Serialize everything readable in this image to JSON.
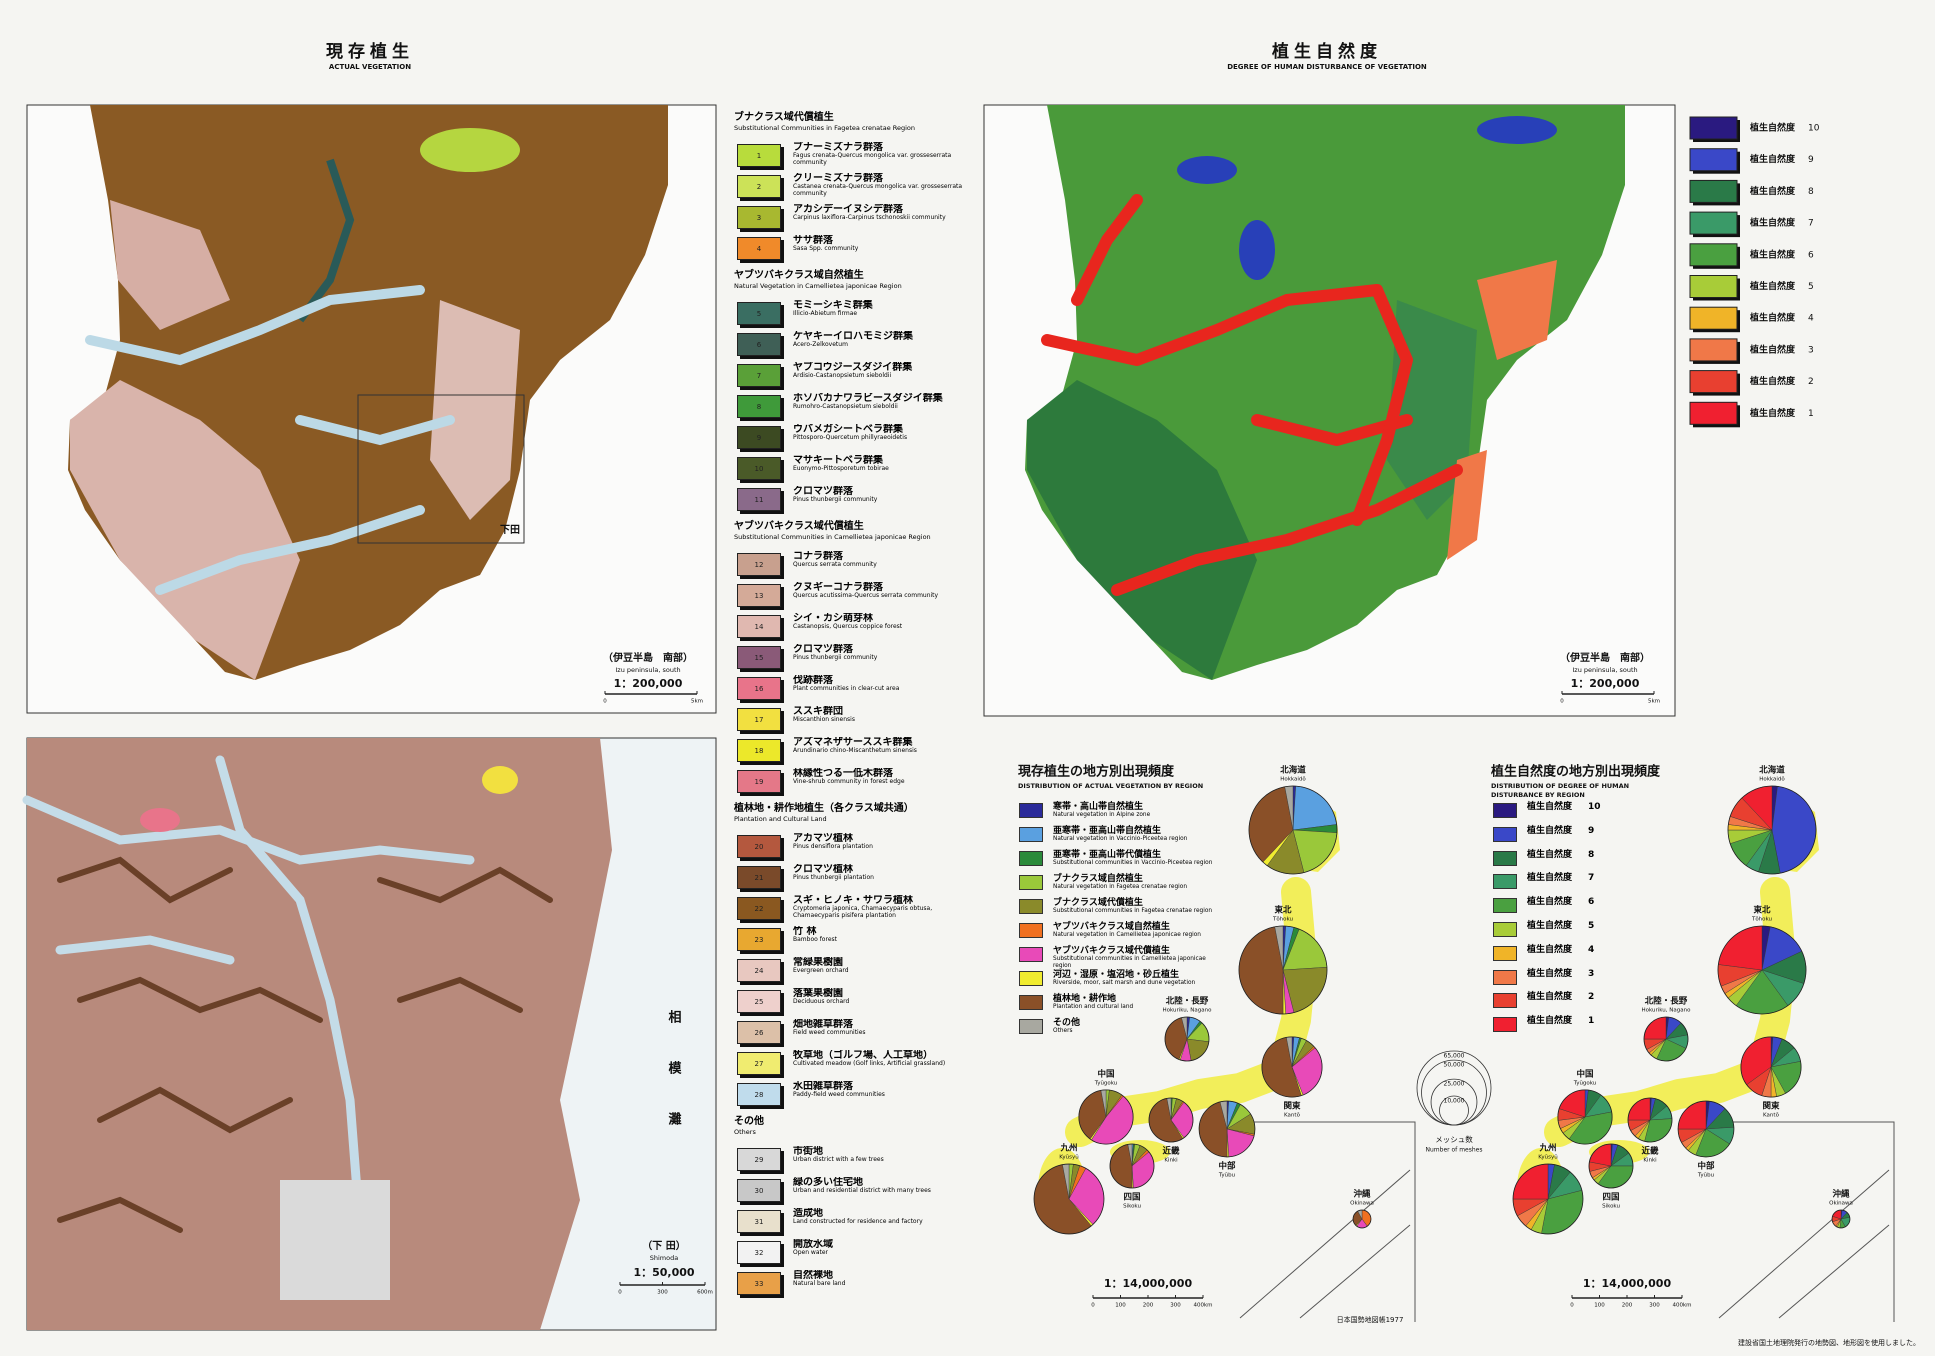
{
  "left_panel": {
    "title": "現存植生",
    "subtitle": "ACTUAL VEGETATION"
  },
  "right_panel": {
    "title": "植生自然度",
    "subtitle": "DEGREE OF HUMAN DISTURBANCE OF VEGETATION"
  },
  "map_izu": {
    "name": "（伊豆半島　南部）",
    "name_en": "Izu peninsula, south",
    "scale": "1：200,000",
    "scale_ticks": [
      "0",
      "5km"
    ],
    "place_label": "下田"
  },
  "map_shimoda": {
    "name": "（下 田）",
    "name_en": "Shimoda",
    "scale": "1：50,000",
    "scale_ticks": [
      "0",
      "300",
      "600m"
    ],
    "sea_label": "相模灘"
  },
  "degree_map": {
    "name": "（伊豆半島　南部）",
    "name_en": "Izu peninsula, south",
    "scale": "1：200,000",
    "scale_ticks": [
      "0",
      "5km"
    ]
  },
  "vegetation_legend": {
    "sections": [
      {
        "title": "ブナクラス域代償植生",
        "title_en": "Substitutional Communities in Fagetea crenatae Region",
        "items": [
          {
            "no": 1,
            "name": "ブナーミズナラ群落",
            "name_en": "Fagus crenata-Quercus mongolica var. grosseserrata community",
            "color": "#b8dc3c"
          },
          {
            "no": 2,
            "name": "クリーミズナラ群落",
            "name_en": "Castanea crenata-Quercus mongolica var. grosseserrata community",
            "color": "#cce258"
          },
          {
            "no": 3,
            "name": "アカシデーイヌシデ群落",
            "name_en": "Carpinus laxiflora-Carpinus tschonoskii community",
            "color": "#a8b830"
          },
          {
            "no": 4,
            "name": "ササ群落",
            "name_en": "Sasa Spp. community",
            "color": "#f08a2a"
          }
        ]
      },
      {
        "title": "ヤブツバキクラス域自然植生",
        "title_en": "Natural Vegetation in Camellietea japonicae Region",
        "items": [
          {
            "no": 5,
            "name": "モミーシキミ群集",
            "name_en": "Illicio-Abietum firmae",
            "color": "#3a6e62"
          },
          {
            "no": 6,
            "name": "ケヤキーイロハモミジ群集",
            "name_en": "Acero-Zelkovetum",
            "color": "#3f5f56"
          },
          {
            "no": 7,
            "name": "ヤブコウジースダジイ群集",
            "name_en": "Ardisio-Castanopsietum sieboldii",
            "color": "#5aa038"
          },
          {
            "no": 8,
            "name": "ホソバカナワラビースダジイ群集",
            "name_en": "Rumohro-Castanopsietum sieboldii",
            "color": "#3f9a3a"
          },
          {
            "no": 9,
            "name": "ウバメガシートベラ群集",
            "name_en": "Pittosporo-Quercetum phillyraeoidetis",
            "color": "#3c4a22"
          },
          {
            "no": 10,
            "name": "マサキートベラ群集",
            "name_en": "Euonymo-Pittosporetum tobirae",
            "color": "#4a5a28"
          },
          {
            "no": 11,
            "name": "クロマツ群落",
            "name_en": "Pinus thunbergii community",
            "color": "#8a6a8a"
          }
        ]
      },
      {
        "title": "ヤブツバキクラス域代償植生",
        "title_en": "Substitutional Communities in Camellietea japonicae Region",
        "items": [
          {
            "no": 12,
            "name": "コナラ群落",
            "name_en": "Quercus serrata community",
            "color": "#c8a08e"
          },
          {
            "no": 13,
            "name": "クヌギーコナラ群落",
            "name_en": "Quercus acutissima-Quercus serrata community",
            "color": "#d4aa98"
          },
          {
            "no": 14,
            "name": "シイ・カシ萌芽林",
            "name_en": "Castanopsis, Quercus coppice forest",
            "color": "#e0b8b0"
          },
          {
            "no": 15,
            "name": "クロマツ群落",
            "name_en": "Pinus thunbergii community",
            "color": "#8a5a78"
          },
          {
            "no": 16,
            "name": "伐跡群落",
            "name_en": "Plant communities in clear-cut area",
            "color": "#e8748a"
          },
          {
            "no": 17,
            "name": "ススキ群団",
            "name_en": "Miscanthion sinensis",
            "color": "#f2e040"
          },
          {
            "no": 18,
            "name": "アズマネザサーススキ群集",
            "name_en": "Arundinario chino-Miscanthetum sinensis",
            "color": "#ece82a"
          },
          {
            "no": 19,
            "name": "林縁性つる一低木群落",
            "name_en": "Vine-shrub community in forest edge",
            "color": "#e47888"
          }
        ]
      },
      {
        "title": "植林地・耕作地植生（各クラス域共通）",
        "title_en": "Plantation and Cultural Land",
        "items": [
          {
            "no": 20,
            "name": "アカマツ植林",
            "name_en": "Pinus densiflora plantation",
            "color": "#b4583e"
          },
          {
            "no": 21,
            "name": "クロマツ植林",
            "name_en": "Pinus thunbergii plantation",
            "color": "#7a4a2a"
          },
          {
            "no": 22,
            "name": "スギ・ヒノキ・サワラ植林",
            "name_en": "Cryptomeria japonica, Chamaecyparis obtusa, Chamaecyparis pisifera plantation",
            "color": "#8a5820"
          },
          {
            "no": 23,
            "name": "竹 林",
            "name_en": "Bamboo forest",
            "color": "#e8a830"
          },
          {
            "no": 24,
            "name": "常緑果樹園",
            "name_en": "Evergreen orchard",
            "color": "#e8c8c0"
          },
          {
            "no": 25,
            "name": "落葉果樹園",
            "name_en": "Deciduous orchard",
            "color": "#eed0cc"
          },
          {
            "no": 26,
            "name": "畑地雑草群落",
            "name_en": "Field weed communities",
            "color": "#dcc0a8"
          },
          {
            "no": 27,
            "name": "牧草地（ゴルフ場、人工草地）",
            "name_en": "Cultivated meadow (Golf links, Artificial grassland)",
            "color": "#f0ec70"
          },
          {
            "no": 28,
            "name": "水田雑草群落",
            "name_en": "Paddy-field weed communities",
            "color": "#c0dcec"
          }
        ]
      },
      {
        "title": "その他",
        "title_en": "Others",
        "items": [
          {
            "no": 29,
            "name": "市街地",
            "name_en": "Urban district with a few trees",
            "color": "#d8d8d8"
          },
          {
            "no": 30,
            "name": "緑の多い住宅地",
            "name_en": "Urban and residential district with many trees",
            "color": "#c8c8c8"
          },
          {
            "no": 31,
            "name": "造成地",
            "name_en": "Land constructed for residence and factory",
            "color": "#e8e0cc"
          },
          {
            "no": 32,
            "name": "開放水域",
            "name_en": "Open water",
            "color": "#f2f2f2"
          },
          {
            "no": 33,
            "name": "自然裸地",
            "name_en": "Natural bare land",
            "color": "#e8a048"
          }
        ]
      }
    ]
  },
  "degree_legend": {
    "items": [
      {
        "label": "植生自然度",
        "degree": 10,
        "color": "#2a1a80"
      },
      {
        "label": "植生自然度",
        "degree": 9,
        "color": "#3a48c8"
      },
      {
        "label": "植生自然度",
        "degree": 8,
        "color": "#2a7a48"
      },
      {
        "label": "植生自然度",
        "degree": 7,
        "color": "#3a9a68"
      },
      {
        "label": "植生自然度",
        "degree": 6,
        "color": "#4aa040"
      },
      {
        "label": "植生自然度",
        "degree": 5,
        "color": "#a8cc38"
      },
      {
        "label": "植生自然度",
        "degree": 4,
        "color": "#f0b428"
      },
      {
        "label": "植生自然度",
        "degree": 3,
        "color": "#f07848"
      },
      {
        "label": "植生自然度",
        "degree": 2,
        "color": "#e84030"
      },
      {
        "label": "植生自然度",
        "degree": 1,
        "color": "#f02030"
      }
    ]
  },
  "mesh_legend": {
    "ticks": [
      {
        "value": 65000,
        "label": "65,000"
      },
      {
        "value": 50000,
        "label": "50,000"
      },
      {
        "value": 25000,
        "label": "25,000"
      },
      {
        "value": 10000,
        "label": "10,000"
      }
    ],
    "title": "メッシュ数",
    "title_en": "Number of meshes"
  },
  "pie_maps": [
    {
      "title": "現存植生の地方別出現頻度",
      "subtitle": [
        "DISTRIBUTION OF ACTUAL VEGETATION BY REGION"
      ],
      "legend": [
        {
          "name": "寒帯・高山帯自然植生",
          "name_en": "Natural vegetation in Alpine zone",
          "color": "#2a2a9a"
        },
        {
          "name": "亜寒帯・亜高山帯自然植生",
          "name_en": "Natural vegetation in Vaccinio-Piceetea region",
          "color": "#5aa0e0"
        },
        {
          "name": "亜寒帯・亜高山帯代償植生",
          "name_en": "Substitutional communities in Vaccinio-Piceetea region",
          "color": "#2a8a3a"
        },
        {
          "name": "ブナクラス域自然植生",
          "name_en": "Natural vegetation in Fagetea crenatae region",
          "color": "#9ac83a"
        },
        {
          "name": "ブナクラス域代償植生",
          "name_en": "Substitutional communities in Fagetea crenatae region",
          "color": "#8a8a2a"
        },
        {
          "name": "ヤブツバキクラス域自然植生",
          "name_en": "Natural vegetation in Camellietea japonicae region",
          "color": "#f07020"
        },
        {
          "name": "ヤブツバキクラス域代償植生",
          "name_en": "Substitutional communities in Camellietea japonicae region",
          "color": "#e84ab8"
        },
        {
          "name": "河辺・湿原・塩沼地・砂丘植生",
          "name_en": "Riverside, moor, salt marsh and dune vegetation",
          "color": "#f0ec30"
        },
        {
          "name": "植林地・耕作地",
          "name_en": "Plantation and cultural land",
          "color": "#8a5028"
        },
        {
          "name": "その他",
          "name_en": "Others",
          "color": "#a8a8a0"
        }
      ],
      "regions": [
        {
          "name": "北海道",
          "name_en": "Hokkaidō",
          "meshes": 92000,
          "shares": [
            1,
            22,
            3,
            20,
            14,
            0,
            0,
            2,
            35,
            3
          ]
        },
        {
          "name": "東北",
          "name_en": "Tōhoku",
          "meshes": 92000,
          "shares": [
            1,
            3,
            2,
            18,
            22,
            0,
            3,
            1,
            47,
            3
          ]
        },
        {
          "name": "北陸・長野",
          "name_en": "Hokuriku, Nagano",
          "meshes": 23000,
          "shares": [
            2,
            8,
            2,
            15,
            20,
            0,
            8,
            1,
            40,
            4
          ]
        },
        {
          "name": "関東",
          "name_en": "Kantō",
          "meshes": 43000,
          "shares": [
            1,
            3,
            1,
            3,
            5,
            1,
            30,
            1,
            52,
            3
          ]
        },
        {
          "name": "中部",
          "name_en": "Tyūbu",
          "meshes": 37000,
          "shares": [
            1,
            5,
            2,
            8,
            12,
            1,
            20,
            1,
            46,
            4
          ]
        },
        {
          "name": "近畿",
          "name_en": "Kinki",
          "meshes": 23000,
          "shares": [
            0,
            0,
            1,
            3,
            5,
            1,
            30,
            1,
            56,
            3
          ]
        },
        {
          "name": "中国",
          "name_en": "Tyūgoku",
          "meshes": 35000,
          "shares": [
            0,
            0,
            0,
            2,
            8,
            1,
            48,
            1,
            37,
            3
          ]
        },
        {
          "name": "四国",
          "name_en": "Sikoku",
          "meshes": 23000,
          "shares": [
            0,
            1,
            1,
            4,
            6,
            2,
            35,
            1,
            47,
            3
          ]
        },
        {
          "name": "九州",
          "name_en": "Kyūsyū",
          "meshes": 58000,
          "shares": [
            0,
            0,
            0,
            2,
            3,
            3,
            30,
            1,
            58,
            3
          ]
        },
        {
          "name": "沖縄",
          "name_en": "Okinawa",
          "meshes": 3800,
          "shares": [
            0,
            0,
            0,
            0,
            0,
            40,
            20,
            2,
            30,
            8
          ]
        }
      ],
      "scale": "1：14,000,000",
      "scale_ticks": [
        "0",
        "100",
        "200",
        "300",
        "400km"
      ]
    },
    {
      "title": "植生自然度の地方別出現頻度",
      "subtitle": [
        "DISTRIBUTION OF DEGREE OF HUMAN",
        "DISTURBANCE BY REGION"
      ],
      "legend": [
        {
          "name": "植生自然度",
          "degree": 10,
          "color": "#2a1a80"
        },
        {
          "name": "植生自然度",
          "degree": 9,
          "color": "#3a48c8"
        },
        {
          "name": "植生自然度",
          "degree": 8,
          "color": "#2a7a48"
        },
        {
          "name": "植生自然度",
          "degree": 7,
          "color": "#3a9a68"
        },
        {
          "name": "植生自然度",
          "degree": 6,
          "color": "#4aa040"
        },
        {
          "name": "植生自然度",
          "degree": 5,
          "color": "#a8cc38"
        },
        {
          "name": "植生自然度",
          "degree": 4,
          "color": "#f0b428"
        },
        {
          "name": "植生自然度",
          "degree": 3,
          "color": "#f07848"
        },
        {
          "name": "植生自然度",
          "degree": 2,
          "color": "#e84030"
        },
        {
          "name": "植生自然度",
          "degree": 1,
          "color": "#f02030"
        }
      ],
      "regions": [
        {
          "name": "北海道",
          "name_en": "Hokkaidō",
          "meshes": 92000,
          "shares": [
            2,
            45,
            8,
            5,
            10,
            5,
            2,
            3,
            8,
            12
          ]
        },
        {
          "name": "東北",
          "name_en": "Tōhoku",
          "meshes": 92000,
          "shares": [
            3,
            15,
            12,
            10,
            20,
            4,
            2,
            3,
            8,
            23
          ]
        },
        {
          "name": "北陸・長野",
          "name_en": "Hokuriku, Nagano",
          "meshes": 23000,
          "shares": [
            2,
            10,
            10,
            10,
            25,
            5,
            2,
            3,
            8,
            25
          ]
        },
        {
          "name": "関東",
          "name_en": "Kantō",
          "meshes": 43000,
          "shares": [
            1,
            5,
            8,
            8,
            20,
            5,
            3,
            5,
            10,
            35
          ]
        },
        {
          "name": "中部",
          "name_en": "Tyūbu",
          "meshes": 37000,
          "shares": [
            2,
            10,
            12,
            10,
            22,
            5,
            2,
            4,
            8,
            25
          ]
        },
        {
          "name": "近畿",
          "name_en": "Kinki",
          "meshes": 23000,
          "shares": [
            1,
            3,
            10,
            10,
            30,
            5,
            3,
            5,
            8,
            25
          ]
        },
        {
          "name": "中国",
          "name_en": "Tyūgoku",
          "meshes": 35000,
          "shares": [
            0,
            2,
            8,
            12,
            38,
            5,
            3,
            5,
            7,
            20
          ]
        },
        {
          "name": "四国",
          "name_en": "Sikoku",
          "meshes": 23000,
          "shares": [
            1,
            4,
            10,
            10,
            35,
            4,
            2,
            5,
            7,
            22
          ]
        },
        {
          "name": "九州",
          "name_en": "Kyūsyū",
          "meshes": 58000,
          "shares": [
            0,
            3,
            8,
            10,
            32,
            5,
            3,
            6,
            8,
            25
          ]
        },
        {
          "name": "沖縄",
          "name_en": "Okinawa",
          "meshes": 3800,
          "shares": [
            2,
            10,
            10,
            20,
            10,
            5,
            3,
            10,
            10,
            20
          ]
        }
      ],
      "scale": "1：14,000,000",
      "scale_ticks": [
        "0",
        "100",
        "200",
        "300",
        "400km"
      ]
    }
  ],
  "credits": {
    "atlas": "日本国勢地図帳1977",
    "source": "建設省国土地理院発行の地勢図、地形図を使用しました。"
  }
}
